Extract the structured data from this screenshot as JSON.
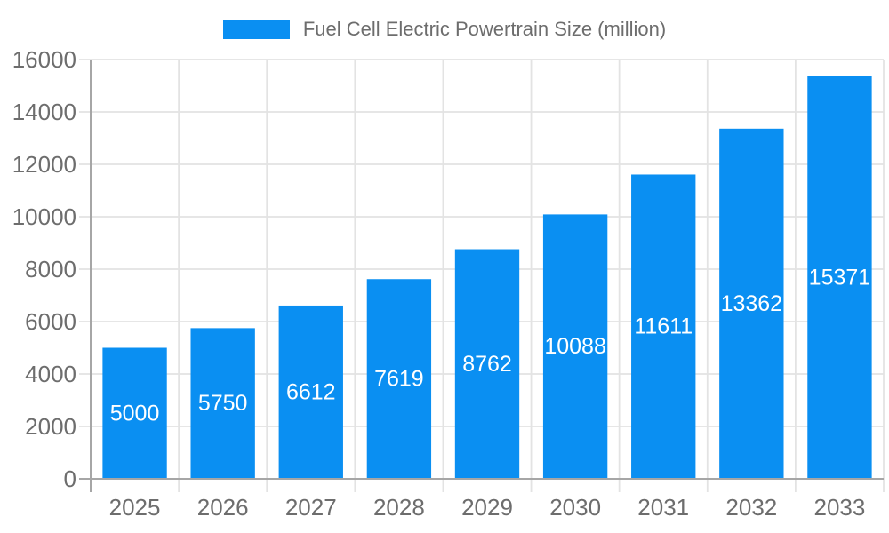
{
  "chart_data": {
    "type": "bar",
    "title": "",
    "legend": {
      "label": "Fuel Cell Electric Powertrain Size (million)",
      "position": "top"
    },
    "categories": [
      "2025",
      "2026",
      "2027",
      "2028",
      "2029",
      "2030",
      "2031",
      "2032",
      "2033"
    ],
    "values": [
      5000,
      5750,
      6612,
      7619,
      8762,
      10088,
      11611,
      13362,
      15371
    ],
    "value_labels": [
      "5000",
      "5750",
      "6612",
      "7619",
      "8762",
      "10088",
      "11611",
      "13362",
      "15371"
    ],
    "xlabel": "",
    "ylabel": "",
    "ylim": [
      0,
      16000
    ],
    "ytick_step": 2000,
    "y_tick_labels": [
      "0",
      "2000",
      "4000",
      "6000",
      "8000",
      "10000",
      "12000",
      "14000",
      "16000"
    ],
    "grid": true,
    "colors": {
      "bar": "#0a8ff2",
      "value_label": "#ffffff",
      "axis_text": "#6d6d6d",
      "grid": "#e3e3e3",
      "axis_line": "#a6a6a6"
    }
  }
}
